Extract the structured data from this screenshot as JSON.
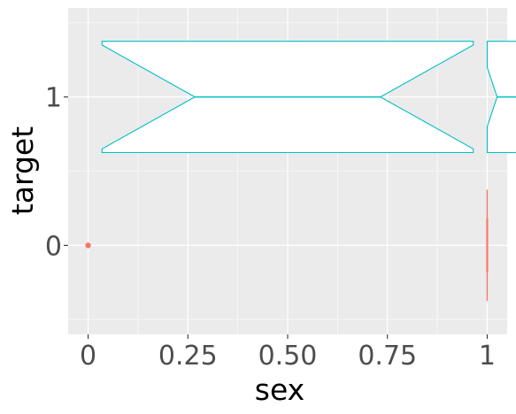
{
  "chart_data": {
    "type": "boxplot",
    "xlabel": "sex",
    "ylabel": "target",
    "xlim": [
      -0.05,
      1.05
    ],
    "ylim": [
      -0.6,
      1.6
    ],
    "x_ticks": [
      {
        "value": 0,
        "label": "0"
      },
      {
        "value": 0.25,
        "label": "0.25"
      },
      {
        "value": 0.5,
        "label": "0.50"
      },
      {
        "value": 0.75,
        "label": "0.75"
      },
      {
        "value": 1,
        "label": "1"
      }
    ],
    "y_ticks": [
      {
        "value": 0,
        "label": "0"
      },
      {
        "value": 1,
        "label": "1"
      }
    ],
    "grid": true,
    "legend": "none",
    "background": "#ebebeb",
    "series": [
      {
        "group": "0",
        "color": "#f8766d",
        "boxes": [
          {
            "x_center": 1.0,
            "width": 0.0,
            "q1": -0.375,
            "median": 0.0,
            "q3": 0.375,
            "notch_low": -0.18,
            "notch_high": 0.18
          }
        ],
        "outliers": [
          {
            "x": 0,
            "y": 0
          }
        ]
      },
      {
        "group": "1",
        "color": "#00bfc4",
        "boxes": [
          {
            "x_center": 0.5,
            "width": 0.93,
            "q1": 0.625,
            "median": 1.0,
            "q3": 1.375,
            "notch_low": 0.65,
            "notch_high": 1.35
          },
          {
            "x_center": 1.05,
            "width": 0.1,
            "q1": 0.625,
            "median": 1.0,
            "q3": 1.375,
            "notch_low": 0.8,
            "notch_high": 1.2
          }
        ],
        "outliers": []
      }
    ]
  }
}
